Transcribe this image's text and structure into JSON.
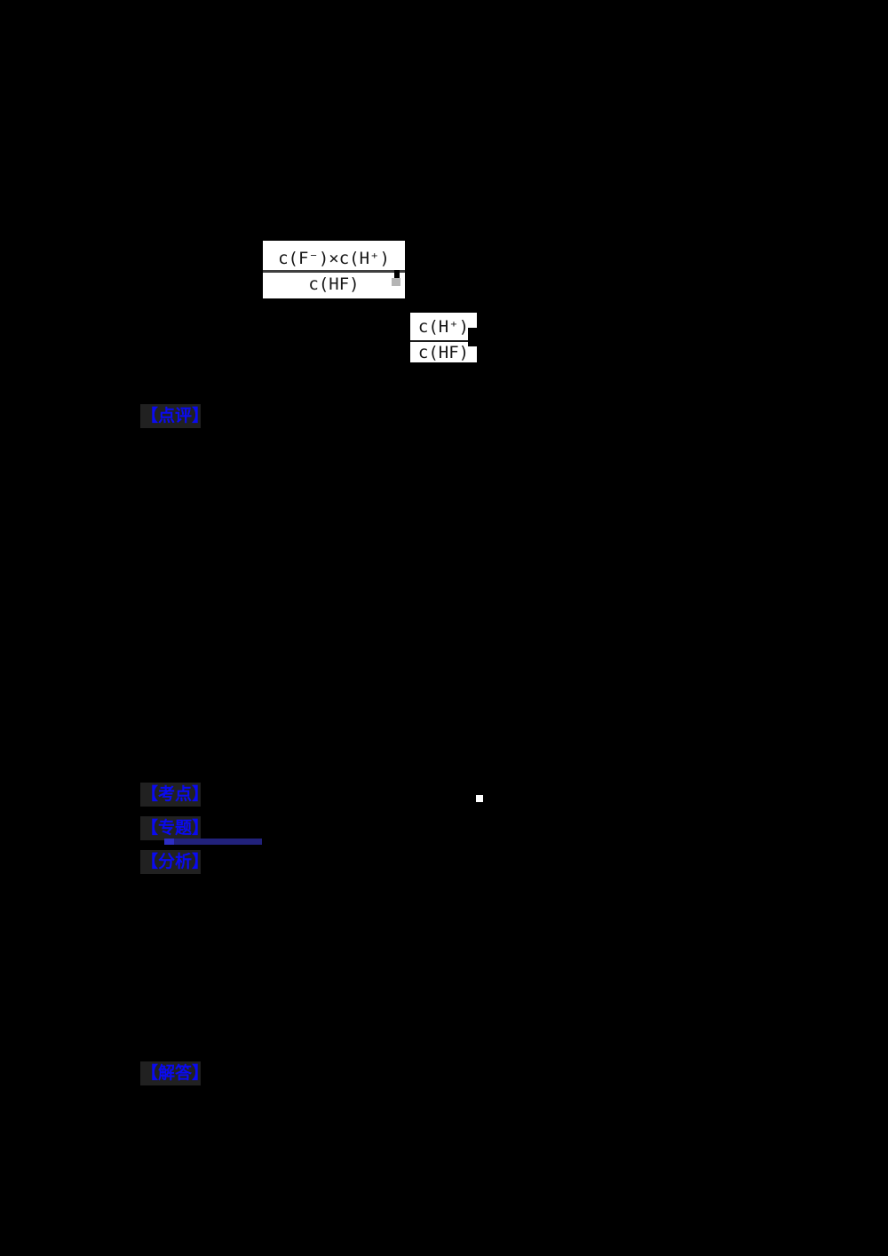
{
  "page": {
    "background": "#000000",
    "description": "black document page with equation images and blue answer-section labels"
  },
  "equations": [
    {
      "numerator": "c(F⁻)×c(H⁺)",
      "denominator": "c(HF)"
    },
    {
      "numerator": "c(H⁺)",
      "denominator": "c(HF)"
    }
  ],
  "answer_labels": {
    "review": "【点评】",
    "knowledge_point": "【考点】",
    "topic": "【专题】",
    "analysis": "【分析】",
    "solution": "【解答】"
  },
  "colors": {
    "page_bg": "#000000",
    "label_blue": "#0a0af2",
    "label_halo": "#212121",
    "topic_underline_navy": "#21217b",
    "topic_underline_tip": "#2d2dc4",
    "equation_box_bg": "#ffffff",
    "equation_text": "#161616",
    "fraction_bar": "#3f3f3f",
    "edge_artifact_gray": "#b5b5b5",
    "white_dot": "#ffffff"
  }
}
